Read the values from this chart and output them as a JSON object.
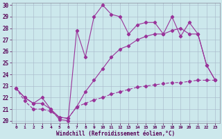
{
  "xlabel": "Windchill (Refroidissement éolien,°C)",
  "bg_color": "#cce8ec",
  "grid_color": "#aabbcc",
  "line_color": "#993399",
  "ylim": [
    20,
    30
  ],
  "xlim": [
    0,
    23
  ],
  "yticks": [
    20,
    21,
    22,
    23,
    24,
    25,
    26,
    27,
    28,
    29,
    30
  ],
  "xticks": [
    0,
    1,
    2,
    3,
    4,
    5,
    6,
    7,
    8,
    9,
    10,
    11,
    12,
    13,
    14,
    15,
    16,
    17,
    18,
    19,
    20,
    21,
    22,
    23
  ],
  "line1_x": [
    0,
    1,
    2,
    3,
    4,
    5,
    6,
    7,
    8,
    9,
    10,
    11,
    12,
    13,
    14,
    15,
    16,
    17,
    18,
    19,
    20,
    21,
    22,
    23
  ],
  "line1_y": [
    22.8,
    22.0,
    21.5,
    22.0,
    21.0,
    20.1,
    20.0,
    27.8,
    25.5,
    29.0,
    30.0,
    29.2,
    29.0,
    27.5,
    28.3,
    28.5,
    28.5,
    27.5,
    29.0,
    27.3,
    28.5,
    27.5,
    24.8,
    23.5
  ],
  "line2_x": [
    0,
    1,
    2,
    3,
    4,
    5,
    6,
    7,
    8,
    9,
    10,
    11,
    12,
    13,
    14,
    15,
    16,
    17,
    18,
    19,
    20,
    21,
    22,
    23
  ],
  "line2_y": [
    22.8,
    22.0,
    21.5,
    21.5,
    21.0,
    20.3,
    20.2,
    21.2,
    22.5,
    23.5,
    24.5,
    25.5,
    26.2,
    26.5,
    27.0,
    27.3,
    27.5,
    27.5,
    27.8,
    28.0,
    27.5,
    27.5,
    24.8,
    23.5
  ],
  "line3_x": [
    0,
    1,
    2,
    3,
    4,
    5,
    6,
    7,
    8,
    9,
    10,
    11,
    12,
    13,
    14,
    15,
    16,
    17,
    18,
    19,
    20,
    21,
    22,
    23
  ],
  "line3_y": [
    22.8,
    21.7,
    21.0,
    21.0,
    20.8,
    20.3,
    20.2,
    21.2,
    21.5,
    21.8,
    22.0,
    22.3,
    22.5,
    22.7,
    22.9,
    23.0,
    23.1,
    23.2,
    23.3,
    23.3,
    23.4,
    23.5,
    23.5,
    23.5
  ]
}
